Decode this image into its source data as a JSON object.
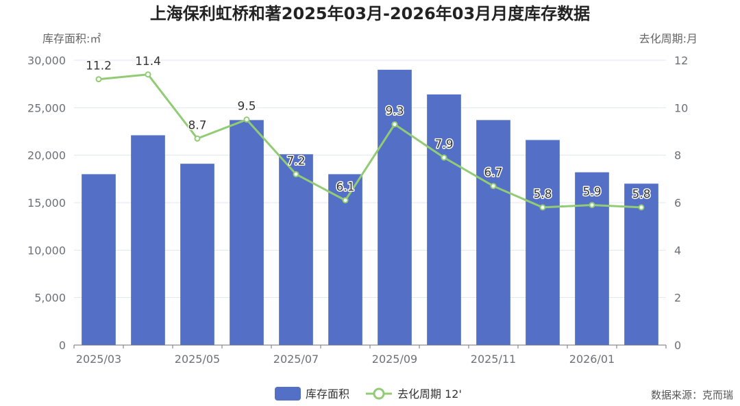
{
  "chart_data": {
    "type": "bar",
    "title": "上海保利虹桥和著2025年03月-2026年03月月度库存数据",
    "left_axis_name": "库存面积:㎡",
    "right_axis_name": "去化周期:月",
    "categories": [
      "2025/03",
      "2025/04",
      "2025/05",
      "2025/06",
      "2025/07",
      "2025/08",
      "2025/09",
      "2025/10",
      "2025/11",
      "2025/12",
      "2026/01",
      "2026/02"
    ],
    "x_tick_labels": [
      "2025/03",
      "2025/05",
      "2025/07",
      "2025/09",
      "2025/11",
      "2026/01"
    ],
    "left_ylim": [
      0,
      30000
    ],
    "left_ticks": [
      "0",
      "5,000",
      "10,000",
      "15,000",
      "20,000",
      "25,000",
      "30,000"
    ],
    "right_ylim": [
      0,
      12
    ],
    "right_ticks": [
      "0",
      "2",
      "4",
      "6",
      "8",
      "10",
      "12"
    ],
    "series": [
      {
        "name": "库存面积",
        "type": "bar",
        "axis": "left",
        "color": "#5470c6",
        "values": [
          18000,
          22100,
          19100,
          23700,
          20100,
          18000,
          29000,
          26400,
          23700,
          21600,
          18200,
          17000
        ]
      },
      {
        "name": "去化周期 12'",
        "type": "line",
        "axis": "right",
        "color": "#91cc75",
        "values": [
          11.2,
          11.4,
          8.7,
          9.5,
          7.2,
          6.1,
          9.3,
          7.9,
          6.7,
          5.8,
          5.9,
          5.8
        ],
        "labels": [
          "11.2",
          "11.4",
          "8.7",
          "9.5",
          "7.2",
          "6.1",
          "9.3",
          "7.9",
          "6.7",
          "5.8",
          "5.9",
          "5.8"
        ]
      }
    ],
    "grid": true,
    "legend_position": "bottom-center"
  },
  "source_text": "数据来源：克而瑞"
}
